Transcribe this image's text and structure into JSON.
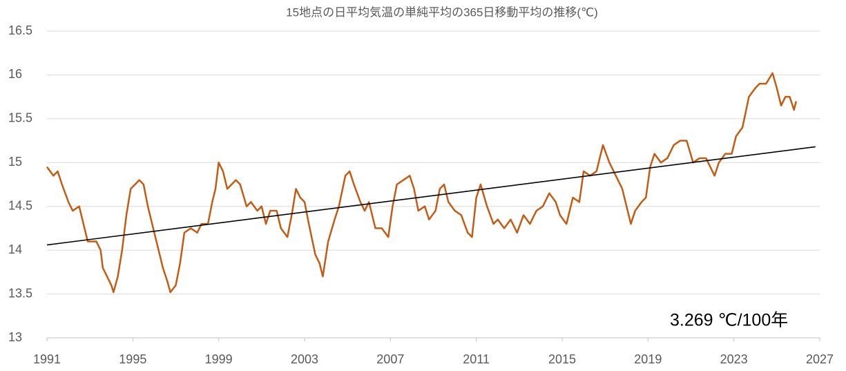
{
  "chart_data": {
    "type": "line",
    "title": "15地点の日平均気温の単純平均の365日移動平均の推移(℃)",
    "annotation": "3.269 ℃/100年",
    "x": [
      1991.0,
      1991.3,
      1991.5,
      1991.7,
      1992.0,
      1992.2,
      1992.5,
      1992.7,
      1992.9,
      1993.1,
      1993.3,
      1993.5,
      1993.6,
      1993.8,
      1994.0,
      1994.1,
      1994.3,
      1994.5,
      1994.7,
      1994.9,
      1995.1,
      1995.3,
      1995.5,
      1995.7,
      1996.0,
      1996.2,
      1996.4,
      1996.6,
      1996.75,
      1997.0,
      1997.2,
      1997.4,
      1997.7,
      1998.0,
      1998.2,
      1998.5,
      1998.7,
      1998.85,
      1999.0,
      1999.2,
      1999.4,
      1999.6,
      1999.8,
      2000.0,
      2000.3,
      2000.5,
      2000.8,
      2001.0,
      2001.2,
      2001.4,
      2001.7,
      2001.9,
      2002.2,
      2002.4,
      2002.6,
      2002.8,
      2003.0,
      2003.2,
      2003.5,
      2003.7,
      2003.85,
      2004.1,
      2004.4,
      2004.6,
      2004.9,
      2005.1,
      2005.3,
      2005.6,
      2005.8,
      2006.0,
      2006.3,
      2006.6,
      2006.9,
      2007.1,
      2007.3,
      2007.6,
      2007.9,
      2008.1,
      2008.3,
      2008.6,
      2008.8,
      2009.1,
      2009.3,
      2009.5,
      2009.7,
      2010.0,
      2010.3,
      2010.6,
      2010.8,
      2011.0,
      2011.2,
      2011.5,
      2011.8,
      2012.0,
      2012.3,
      2012.6,
      2012.9,
      2013.2,
      2013.5,
      2013.8,
      2014.1,
      2014.4,
      2014.7,
      2014.9,
      2015.2,
      2015.5,
      2015.8,
      2016.0,
      2016.3,
      2016.6,
      2016.9,
      2017.2,
      2017.5,
      2017.8,
      2018.0,
      2018.2,
      2018.4,
      2018.7,
      2018.9,
      2019.1,
      2019.3,
      2019.6,
      2019.9,
      2020.2,
      2020.5,
      2020.8,
      2021.1,
      2021.4,
      2021.7,
      2021.9,
      2022.1,
      2022.3,
      2022.6,
      2022.9,
      2023.1,
      2023.4,
      2023.7,
      2024.0,
      2024.2,
      2024.5,
      2024.8,
      2025.0,
      2025.2,
      2025.4,
      2025.6,
      2025.8,
      2025.9
    ],
    "series": [
      {
        "color": "#c55a11",
        "values": [
          14.95,
          14.85,
          14.9,
          14.75,
          14.55,
          14.45,
          14.5,
          14.3,
          14.1,
          14.1,
          14.1,
          14.0,
          13.8,
          13.7,
          13.6,
          13.52,
          13.7,
          14.0,
          14.4,
          14.7,
          14.75,
          14.8,
          14.75,
          14.5,
          14.2,
          14.0,
          13.8,
          13.65,
          13.52,
          13.6,
          13.85,
          14.2,
          14.25,
          14.2,
          14.3,
          14.3,
          14.55,
          14.7,
          15.0,
          14.9,
          14.7,
          14.75,
          14.8,
          14.75,
          14.5,
          14.55,
          14.45,
          14.5,
          14.3,
          14.45,
          14.45,
          14.25,
          14.15,
          14.4,
          14.7,
          14.6,
          14.55,
          14.3,
          13.95,
          13.85,
          13.7,
          14.1,
          14.35,
          14.5,
          14.85,
          14.9,
          14.75,
          14.55,
          14.45,
          14.55,
          14.25,
          14.25,
          14.15,
          14.5,
          14.75,
          14.8,
          14.85,
          14.7,
          14.45,
          14.5,
          14.35,
          14.45,
          14.7,
          14.75,
          14.55,
          14.45,
          14.4,
          14.2,
          14.15,
          14.6,
          14.75,
          14.5,
          14.3,
          14.35,
          14.25,
          14.35,
          14.2,
          14.4,
          14.3,
          14.45,
          14.5,
          14.65,
          14.55,
          14.4,
          14.3,
          14.6,
          14.55,
          14.9,
          14.85,
          14.9,
          15.2,
          15.0,
          14.85,
          14.7,
          14.5,
          14.3,
          14.45,
          14.55,
          14.6,
          14.95,
          15.1,
          15.0,
          15.05,
          15.2,
          15.25,
          15.25,
          15.0,
          15.05,
          15.05,
          14.95,
          14.85,
          15.0,
          15.1,
          15.1,
          15.3,
          15.4,
          15.75,
          15.85,
          15.9,
          15.9,
          16.02,
          15.85,
          15.65,
          15.75,
          15.75,
          15.6,
          15.7
        ]
      },
      {
        "color": "#000000",
        "x": [
          1991,
          2026.8
        ],
        "values": [
          14.06,
          15.18
        ]
      }
    ],
    "xlim": [
      1991,
      2027
    ],
    "xticks": [
      1991,
      1995,
      1999,
      2003,
      2007,
      2011,
      2015,
      2019,
      2023,
      2027
    ],
    "ylim": [
      13,
      16.5
    ],
    "yticks": [
      13,
      13.5,
      14,
      14.5,
      15,
      15.5,
      16,
      16.5
    ],
    "grid": true
  }
}
